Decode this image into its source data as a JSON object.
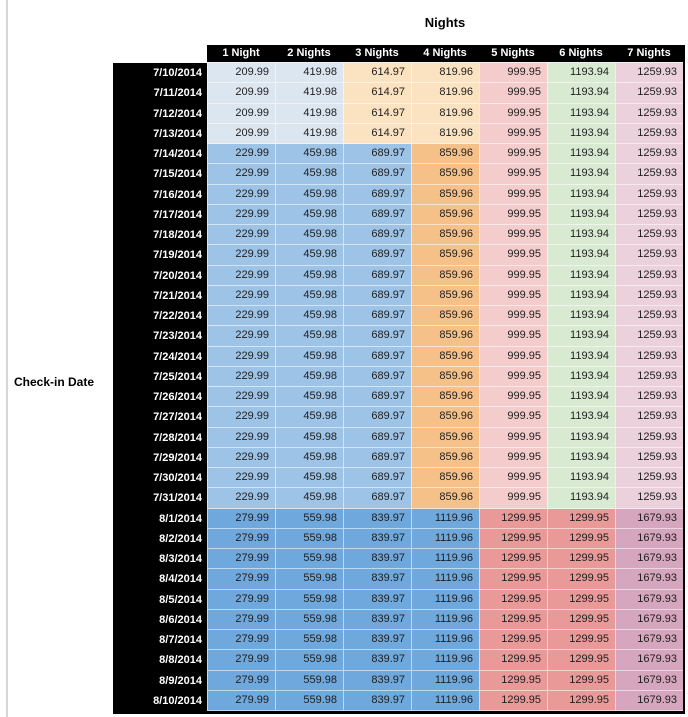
{
  "palette": {
    "header_bg": "#000000",
    "header_text": "#ffffff",
    "value_text": "#1f1f1f",
    "gridline": "rgba(255,255,255,0.55)",
    "window_edge": "#d6d6d6",
    "bands": {
      "early_july": [
        "#DCE6F1",
        "#DCE6F1",
        "#FBE2C1",
        "#FBE2C1",
        "#F4CCCC",
        "#D9EAD3",
        "#EAD1DC"
      ],
      "mid_july": [
        "#9DC3E6",
        "#9DC3E6",
        "#9DC3E6",
        "#F6C189",
        "#F4CCCC",
        "#D9EAD3",
        "#EAD1DC"
      ],
      "august": [
        "#6FA8DC",
        "#6FA8DC",
        "#6FA8DC",
        "#6FA8DC",
        "#EA9999",
        "#EA9999",
        "#D5A6BD"
      ]
    }
  },
  "table": {
    "title": "Nights",
    "row_axis_label": "Check-in Date"
  },
  "chart_data": {
    "type": "table",
    "title": "Nights",
    "row_label": "Check-in Date",
    "columns": [
      "1 Night",
      "2 Nights",
      "3 Nights",
      "4 Nights",
      "5 Nights",
      "6 Nights",
      "7 Nights"
    ],
    "rows": [
      {
        "date": "7/10/2014",
        "band": "early_july",
        "values": [
          209.99,
          419.98,
          614.97,
          819.96,
          999.95,
          1193.94,
          1259.93
        ]
      },
      {
        "date": "7/11/2014",
        "band": "early_july",
        "values": [
          209.99,
          419.98,
          614.97,
          819.96,
          999.95,
          1193.94,
          1259.93
        ]
      },
      {
        "date": "7/12/2014",
        "band": "early_july",
        "values": [
          209.99,
          419.98,
          614.97,
          819.96,
          999.95,
          1193.94,
          1259.93
        ]
      },
      {
        "date": "7/13/2014",
        "band": "early_july",
        "values": [
          209.99,
          419.98,
          614.97,
          819.96,
          999.95,
          1193.94,
          1259.93
        ]
      },
      {
        "date": "7/14/2014",
        "band": "mid_july",
        "values": [
          229.99,
          459.98,
          689.97,
          859.96,
          999.95,
          1193.94,
          1259.93
        ]
      },
      {
        "date": "7/15/2014",
        "band": "mid_july",
        "values": [
          229.99,
          459.98,
          689.97,
          859.96,
          999.95,
          1193.94,
          1259.93
        ]
      },
      {
        "date": "7/16/2014",
        "band": "mid_july",
        "values": [
          229.99,
          459.98,
          689.97,
          859.96,
          999.95,
          1193.94,
          1259.93
        ]
      },
      {
        "date": "7/17/2014",
        "band": "mid_july",
        "values": [
          229.99,
          459.98,
          689.97,
          859.96,
          999.95,
          1193.94,
          1259.93
        ]
      },
      {
        "date": "7/18/2014",
        "band": "mid_july",
        "values": [
          229.99,
          459.98,
          689.97,
          859.96,
          999.95,
          1193.94,
          1259.93
        ]
      },
      {
        "date": "7/19/2014",
        "band": "mid_july",
        "values": [
          229.99,
          459.98,
          689.97,
          859.96,
          999.95,
          1193.94,
          1259.93
        ]
      },
      {
        "date": "7/20/2014",
        "band": "mid_july",
        "values": [
          229.99,
          459.98,
          689.97,
          859.96,
          999.95,
          1193.94,
          1259.93
        ]
      },
      {
        "date": "7/21/2014",
        "band": "mid_july",
        "values": [
          229.99,
          459.98,
          689.97,
          859.96,
          999.95,
          1193.94,
          1259.93
        ]
      },
      {
        "date": "7/22/2014",
        "band": "mid_july",
        "values": [
          229.99,
          459.98,
          689.97,
          859.96,
          999.95,
          1193.94,
          1259.93
        ]
      },
      {
        "date": "7/23/2014",
        "band": "mid_july",
        "values": [
          229.99,
          459.98,
          689.97,
          859.96,
          999.95,
          1193.94,
          1259.93
        ]
      },
      {
        "date": "7/24/2014",
        "band": "mid_july",
        "values": [
          229.99,
          459.98,
          689.97,
          859.96,
          999.95,
          1193.94,
          1259.93
        ]
      },
      {
        "date": "7/25/2014",
        "band": "mid_july",
        "values": [
          229.99,
          459.98,
          689.97,
          859.96,
          999.95,
          1193.94,
          1259.93
        ]
      },
      {
        "date": "7/26/2014",
        "band": "mid_july",
        "values": [
          229.99,
          459.98,
          689.97,
          859.96,
          999.95,
          1193.94,
          1259.93
        ]
      },
      {
        "date": "7/27/2014",
        "band": "mid_july",
        "values": [
          229.99,
          459.98,
          689.97,
          859.96,
          999.95,
          1193.94,
          1259.93
        ]
      },
      {
        "date": "7/28/2014",
        "band": "mid_july",
        "values": [
          229.99,
          459.98,
          689.97,
          859.96,
          999.95,
          1193.94,
          1259.93
        ]
      },
      {
        "date": "7/29/2014",
        "band": "mid_july",
        "values": [
          229.99,
          459.98,
          689.97,
          859.96,
          999.95,
          1193.94,
          1259.93
        ]
      },
      {
        "date": "7/30/2014",
        "band": "mid_july",
        "values": [
          229.99,
          459.98,
          689.97,
          859.96,
          999.95,
          1193.94,
          1259.93
        ]
      },
      {
        "date": "7/31/2014",
        "band": "mid_july",
        "values": [
          229.99,
          459.98,
          689.97,
          859.96,
          999.95,
          1193.94,
          1259.93
        ]
      },
      {
        "date": "8/1/2014",
        "band": "august",
        "values": [
          279.99,
          559.98,
          839.97,
          1119.96,
          1299.95,
          1299.95,
          1679.93
        ]
      },
      {
        "date": "8/2/2014",
        "band": "august",
        "values": [
          279.99,
          559.98,
          839.97,
          1119.96,
          1299.95,
          1299.95,
          1679.93
        ]
      },
      {
        "date": "8/3/2014",
        "band": "august",
        "values": [
          279.99,
          559.98,
          839.97,
          1119.96,
          1299.95,
          1299.95,
          1679.93
        ]
      },
      {
        "date": "8/4/2014",
        "band": "august",
        "values": [
          279.99,
          559.98,
          839.97,
          1119.96,
          1299.95,
          1299.95,
          1679.93
        ]
      },
      {
        "date": "8/5/2014",
        "band": "august",
        "values": [
          279.99,
          559.98,
          839.97,
          1119.96,
          1299.95,
          1299.95,
          1679.93
        ]
      },
      {
        "date": "8/6/2014",
        "band": "august",
        "values": [
          279.99,
          559.98,
          839.97,
          1119.96,
          1299.95,
          1299.95,
          1679.93
        ]
      },
      {
        "date": "8/7/2014",
        "band": "august",
        "values": [
          279.99,
          559.98,
          839.97,
          1119.96,
          1299.95,
          1299.95,
          1679.93
        ]
      },
      {
        "date": "8/8/2014",
        "band": "august",
        "values": [
          279.99,
          559.98,
          839.97,
          1119.96,
          1299.95,
          1299.95,
          1679.93
        ]
      },
      {
        "date": "8/9/2014",
        "band": "august",
        "values": [
          279.99,
          559.98,
          839.97,
          1119.96,
          1299.95,
          1299.95,
          1679.93
        ]
      },
      {
        "date": "8/10/2014",
        "band": "august",
        "values": [
          279.99,
          559.98,
          839.97,
          1119.96,
          1299.95,
          1299.95,
          1679.93
        ]
      }
    ]
  }
}
